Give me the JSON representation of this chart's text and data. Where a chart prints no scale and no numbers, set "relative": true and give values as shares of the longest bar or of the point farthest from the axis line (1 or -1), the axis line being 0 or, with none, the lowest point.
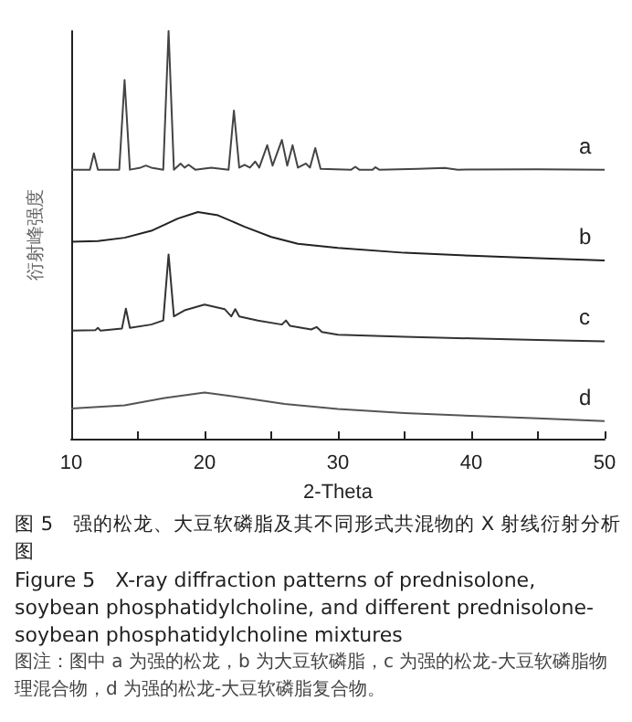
{
  "chart_data": {
    "type": "line",
    "relative": true,
    "title": "图 5　强的松龙、大豆软磷脂及其不同形式共混物的 X 射线衍射分析图",
    "subtitle": "Figure 5　X-ray diffraction patterns of prednisolone, soybean phosphatidylcholine, and different prednisolone-soybean phosphatidylcholine mixtures",
    "annotations": [
      "图注：图中 a 为强的松龙，b 为大豆软磷脂，c 为强的松龙-大豆软磷脂物理混合物，d 为强的松龙-大豆软磷脂复合物。"
    ],
    "xlabel": "2-Theta",
    "ylabel": "衍射峰强度",
    "xlim": [
      10,
      50
    ],
    "xticks": [
      10,
      {
        "value": 15,
        "label": null
      },
      20,
      {
        "value": 25,
        "label": null
      },
      30,
      {
        "value": 35,
        "label": null
      },
      40,
      {
        "value": 45,
        "label": null
      },
      50
    ],
    "grid": false,
    "legend": false,
    "marker": "none",
    "line_style": "solid",
    "series": [
      {
        "name": "a",
        "color": "#444444",
        "x": [
          10,
          11.4,
          11.7,
          12.0,
          13.6,
          14.0,
          14.4,
          15.2,
          15.6,
          16,
          16.9,
          17.3,
          17.7,
          18.2,
          18.5,
          18.8,
          19.3,
          20.5,
          21.8,
          22.2,
          22.6,
          23,
          23.4,
          23.8,
          24.1,
          24.7,
          25.1,
          25.8,
          26.2,
          26.6,
          27,
          27.6,
          27.9,
          28.3,
          28.7,
          31,
          31.3,
          31.6,
          32.6,
          32.8,
          33.1,
          36,
          38,
          39,
          45,
          50
        ],
        "values": [
          0.66,
          0.66,
          0.7,
          0.66,
          0.66,
          0.88,
          0.66,
          0.665,
          0.67,
          0.665,
          0.66,
          1.0,
          0.66,
          0.675,
          0.665,
          0.672,
          0.66,
          0.665,
          0.66,
          0.805,
          0.665,
          0.672,
          0.665,
          0.68,
          0.665,
          0.72,
          0.67,
          0.733,
          0.67,
          0.72,
          0.665,
          0.675,
          0.665,
          0.713,
          0.662,
          0.66,
          0.667,
          0.66,
          0.66,
          0.666,
          0.66,
          0.662,
          0.664,
          0.66,
          0.661,
          0.66
        ]
      },
      {
        "name": "b",
        "color": "#222222",
        "x": [
          10,
          12,
          14,
          16,
          18,
          19.5,
          21,
          23,
          25,
          27,
          30,
          35,
          40,
          45,
          50
        ],
        "values": [
          0.483,
          0.485,
          0.493,
          0.51,
          0.54,
          0.556,
          0.548,
          0.52,
          0.495,
          0.478,
          0.468,
          0.456,
          0.449,
          0.443,
          0.437
        ]
      },
      {
        "name": "c",
        "color": "#333333",
        "x": [
          10,
          11.8,
          12,
          12.2,
          13.8,
          14.1,
          14.4,
          16,
          16.9,
          17.3,
          17.7,
          18.5,
          20,
          21.5,
          22,
          22.3,
          22.6,
          24,
          25.8,
          26.1,
          26.4,
          28,
          28.4,
          28.8,
          30,
          35,
          40,
          45,
          50
        ],
        "values": [
          0.265,
          0.266,
          0.272,
          0.265,
          0.27,
          0.319,
          0.272,
          0.28,
          0.29,
          0.452,
          0.3,
          0.315,
          0.329,
          0.318,
          0.3,
          0.318,
          0.3,
          0.29,
          0.28,
          0.29,
          0.277,
          0.268,
          0.274,
          0.262,
          0.255,
          0.25,
          0.246,
          0.242,
          0.239
        ]
      },
      {
        "name": "d",
        "color": "#555555",
        "x": [
          10,
          14,
          17,
          20,
          23,
          26,
          30,
          35,
          40,
          45,
          50
        ],
        "values": [
          0.074,
          0.082,
          0.1,
          0.113,
          0.1,
          0.085,
          0.073,
          0.063,
          0.056,
          0.05,
          0.043
        ]
      }
    ]
  }
}
